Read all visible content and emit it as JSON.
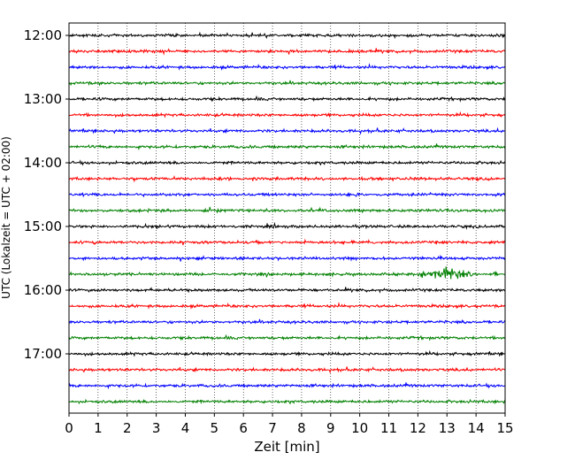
{
  "chart_data": {
    "type": "line",
    "title": "",
    "xlabel": "Zeit  [min]",
    "ylabel": "UTC (Lokalzeit = UTC + 02:00)",
    "xlim": [
      0,
      15
    ],
    "x_ticks": [
      "0",
      "1",
      "2",
      "3",
      "4",
      "5",
      "6",
      "7",
      "8",
      "9",
      "10",
      "11",
      "12",
      "13",
      "14",
      "15"
    ],
    "y_ticks": [
      "12:00",
      "13:00",
      "14:00",
      "15:00",
      "16:00",
      "17:00"
    ],
    "grid_x": true,
    "grid_style": "dotted",
    "trace_interval_min": 15,
    "series_colors": [
      "#000000",
      "#ff0000",
      "#0000ff",
      "#008000"
    ],
    "traces": [
      {
        "start": "12:00",
        "color": "#000000"
      },
      {
        "start": "12:15",
        "color": "#ff0000"
      },
      {
        "start": "12:30",
        "color": "#0000ff"
      },
      {
        "start": "12:45",
        "color": "#008000"
      },
      {
        "start": "13:00",
        "color": "#000000"
      },
      {
        "start": "13:15",
        "color": "#ff0000"
      },
      {
        "start": "13:30",
        "color": "#0000ff"
      },
      {
        "start": "13:45",
        "color": "#008000"
      },
      {
        "start": "14:00",
        "color": "#000000"
      },
      {
        "start": "14:15",
        "color": "#ff0000"
      },
      {
        "start": "14:30",
        "color": "#0000ff"
      },
      {
        "start": "14:45",
        "color": "#008000"
      },
      {
        "start": "15:00",
        "color": "#000000"
      },
      {
        "start": "15:15",
        "color": "#ff0000"
      },
      {
        "start": "15:30",
        "color": "#0000ff"
      },
      {
        "start": "15:45",
        "color": "#008000",
        "event_window_min": [
          11.8,
          14.5
        ]
      },
      {
        "start": "16:00",
        "color": "#000000"
      },
      {
        "start": "16:15",
        "color": "#ff0000"
      },
      {
        "start": "16:30",
        "color": "#0000ff"
      },
      {
        "start": "16:45",
        "color": "#008000"
      },
      {
        "start": "17:00",
        "color": "#000000"
      },
      {
        "start": "17:15",
        "color": "#ff0000"
      },
      {
        "start": "17:30",
        "color": "#0000ff"
      },
      {
        "start": "17:45",
        "color": "#008000"
      }
    ]
  }
}
